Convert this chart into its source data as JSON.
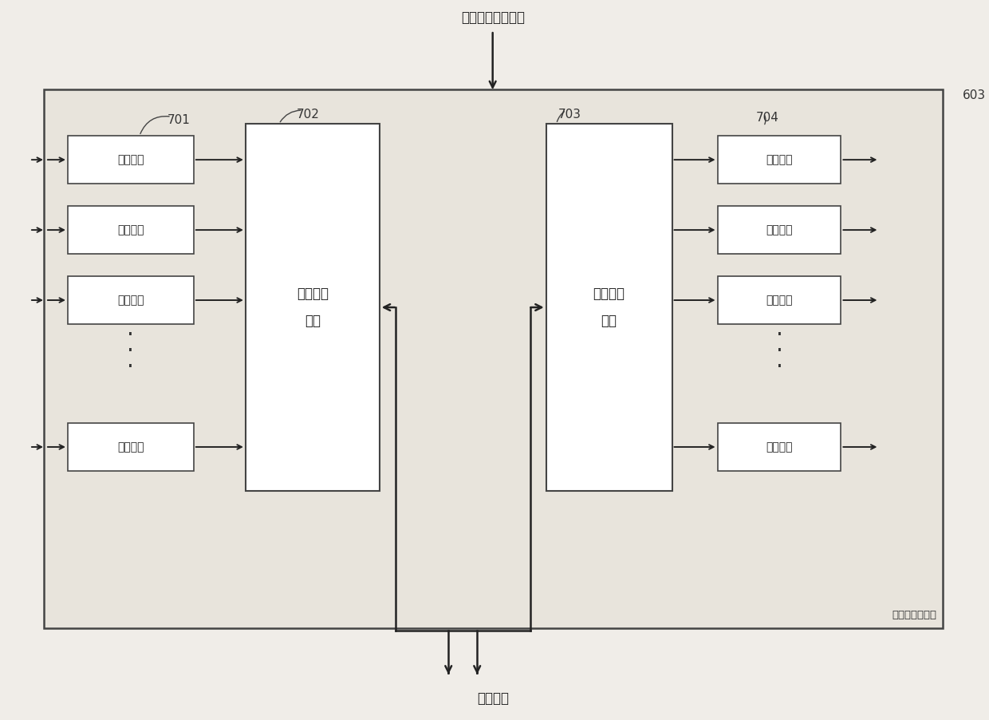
{
  "title_top": "缓存资源控制模块",
  "title_bottom": "缓存单元",
  "label_603": "603",
  "label_701": "701",
  "label_702": "702",
  "label_703": "703",
  "label_704": "704",
  "store_queue_label": "存储队列",
  "queue_storage_label": "队列存储\n模块",
  "queue_schedule_label": "队列调度\n模块",
  "read_queue_label": "读取队列",
  "data_flow_label": "数据流控制模块",
  "fig_bg": "#f0ede8",
  "main_box_bg": "#e8e4dc",
  "box_fill": "#ffffff",
  "border_color": "#444444",
  "text_color": "#222222",
  "arrow_color": "#222222",
  "fig_w": 12.4,
  "fig_h": 9.02,
  "dpi": 100
}
